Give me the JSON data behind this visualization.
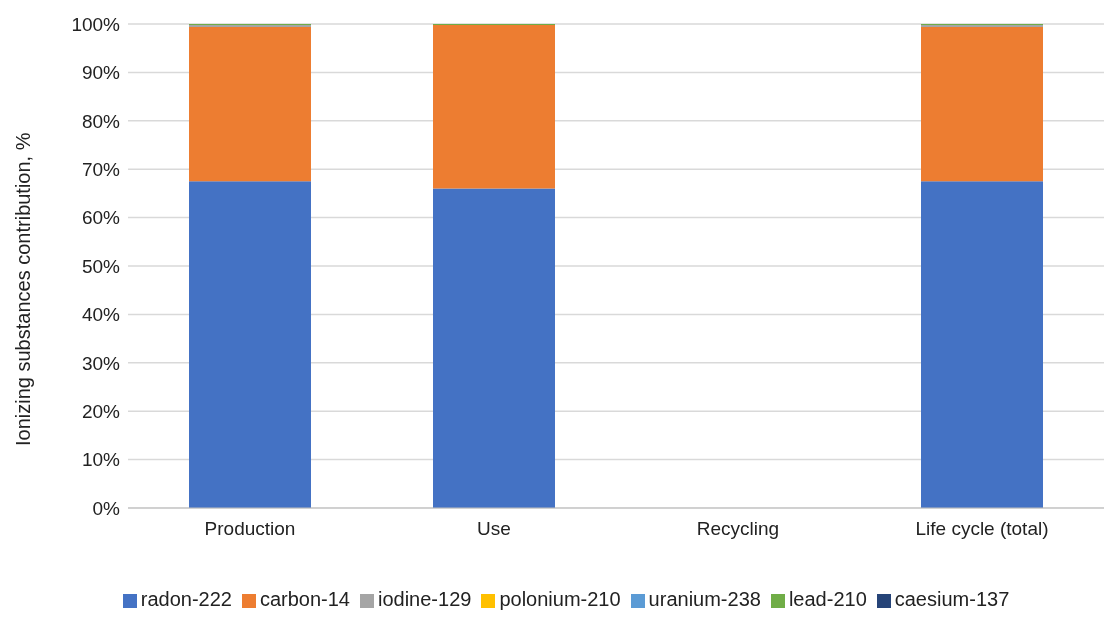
{
  "chart_data": {
    "type": "bar",
    "stacked": true,
    "ylabel": "Ionizing substances contribution, %",
    "categories": [
      "Production",
      "Use",
      "Recycling",
      "Life cycle (total)"
    ],
    "series": [
      {
        "name": "radon-222",
        "color": "#4472c4",
        "values": [
          67.5,
          66.0,
          null,
          67.5
        ]
      },
      {
        "name": "carbon-14",
        "color": "#ed7d31",
        "values": [
          31.9,
          33.8,
          null,
          31.9
        ]
      },
      {
        "name": "iodine-129",
        "color": "#a5a5a5",
        "values": [
          0.4,
          null,
          null,
          0.4
        ]
      },
      {
        "name": "polonium-210",
        "color": "#ffc000",
        "values": [
          0,
          0,
          null,
          0
        ]
      },
      {
        "name": "uranium-238",
        "color": "#5b9bd5",
        "values": [
          0,
          0,
          null,
          0
        ]
      },
      {
        "name": "lead-210",
        "color": "#70ad47",
        "values": [
          0.2,
          0.2,
          null,
          0.2
        ]
      },
      {
        "name": "caesium-137",
        "color": "#264478",
        "values": [
          0,
          0,
          null,
          0
        ]
      }
    ],
    "ylim": [
      0,
      100
    ],
    "yticks": [
      {
        "value": 0,
        "label": "0%"
      },
      {
        "value": 10,
        "label": "10%"
      },
      {
        "value": 20,
        "label": "20%"
      },
      {
        "value": 30,
        "label": "30%"
      },
      {
        "value": 40,
        "label": "40%"
      },
      {
        "value": 50,
        "label": "50%"
      },
      {
        "value": 60,
        "label": "60%"
      },
      {
        "value": 70,
        "label": "70%"
      },
      {
        "value": 80,
        "label": "80%"
      },
      {
        "value": 90,
        "label": "90%"
      },
      {
        "value": 100,
        "label": "100%"
      }
    ],
    "grid": "y",
    "legend": "bottom"
  }
}
